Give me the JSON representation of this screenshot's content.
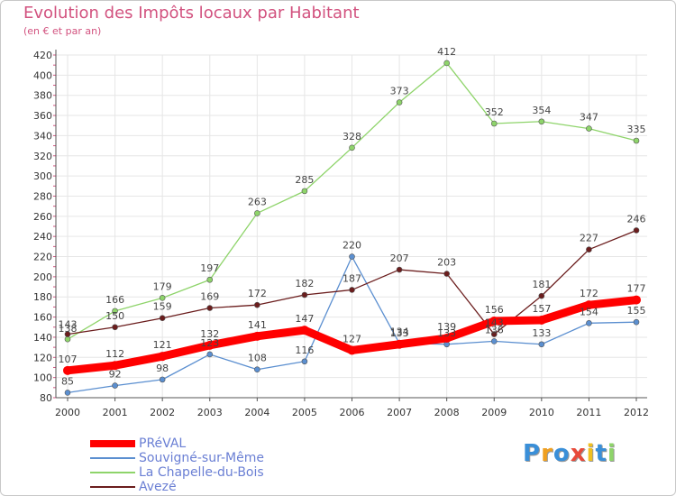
{
  "title": "Evolution des Impôts locaux par Habitant",
  "subtitle": "(en € et par an)",
  "chart_data": {
    "type": "line",
    "x": [
      2000,
      2001,
      2002,
      2003,
      2004,
      2005,
      2006,
      2007,
      2008,
      2009,
      2010,
      2011,
      2012
    ],
    "ylim": [
      80,
      420
    ],
    "yticks": [
      80,
      100,
      120,
      140,
      160,
      180,
      200,
      220,
      240,
      260,
      280,
      300,
      320,
      340,
      360,
      380,
      400,
      420
    ],
    "grid": true,
    "series": [
      {
        "name": "Souvigné-sur-Même",
        "color": "#5b8fd0",
        "values": [
          85,
          92,
          98,
          123,
          108,
          116,
          220,
          134,
          133,
          136,
          133,
          154,
          155
        ]
      },
      {
        "name": "La Chapelle-du-Bois",
        "color": "#8ed46a",
        "values": [
          138,
          166,
          179,
          197,
          263,
          285,
          328,
          373,
          412,
          352,
          354,
          347,
          335
        ]
      },
      {
        "name": "Avezé",
        "color": "#6b1d1d",
        "values": [
          143,
          150,
          159,
          169,
          172,
          182,
          187,
          207,
          203,
          143,
          181,
          227,
          246
        ]
      },
      {
        "name": "PRéVAL",
        "color": "#ff0000",
        "values": [
          107,
          112,
          121,
          132,
          141,
          147,
          127,
          133,
          139,
          156,
          157,
          172,
          177
        ]
      }
    ],
    "labels": [
      {
        "series": "Souvigné-sur-Même",
        "texts": [
          "85",
          "92",
          "98",
          "123",
          "108",
          "116",
          "220",
          "134",
          "133",
          "136",
          "133",
          "154",
          "155"
        ]
      },
      {
        "series": "La Chapelle-du-Bois",
        "texts": [
          "138",
          "166",
          "179",
          "197",
          "263",
          "285",
          "328",
          "373",
          "412",
          "352",
          "354",
          "347",
          "335"
        ]
      },
      {
        "series": "Avezé",
        "texts": [
          "143",
          "150",
          "159",
          "169",
          "172",
          "182",
          "187",
          "207",
          "203",
          "143",
          "181",
          "227",
          "246"
        ]
      },
      {
        "series": "PRéVAL",
        "texts": [
          "107",
          "112",
          "121",
          "132",
          "141",
          "147",
          "127",
          "133",
          "139",
          "156",
          "157",
          "172",
          "177"
        ]
      }
    ],
    "legend": [
      {
        "name": "PRéVAL",
        "color": "#ff0000"
      },
      {
        "name": "Souvigné-sur-Même",
        "color": "#5b8fd0"
      },
      {
        "name": "La Chapelle-du-Bois",
        "color": "#8ed46a"
      },
      {
        "name": "Avezé",
        "color": "#6b1d1d"
      }
    ],
    "legend_position": "bottom-left"
  },
  "logo": {
    "letters": [
      "P",
      "r",
      "o",
      "x",
      "i",
      "t",
      "i"
    ],
    "colors": [
      "#3a8fd8",
      "#f0a020",
      "#3a8fd8",
      "#e84a3a",
      "#f0c020",
      "#3a8fd8",
      "#8ed46a"
    ]
  }
}
